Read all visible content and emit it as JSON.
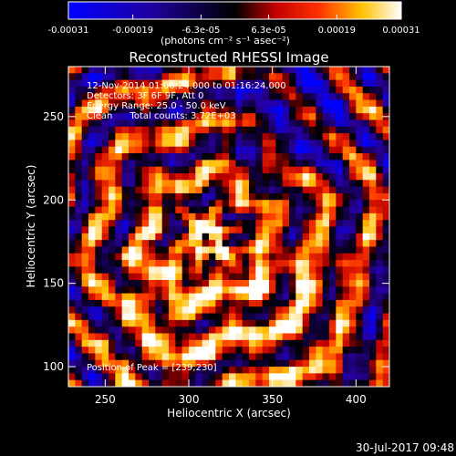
{
  "colorbar": {
    "tick_labels": [
      "-0.00031",
      "-0.00019",
      "-6.3e-05",
      "6.3e-05",
      "0.00019",
      "0.00031"
    ],
    "tick_values": [
      -0.00031,
      -0.00019,
      -6.3e-05,
      6.3e-05,
      0.00019,
      0.00031
    ],
    "range": [
      -0.00031,
      0.00031
    ],
    "unit_label": "(photons cm⁻² s⁻¹ asec⁻²)"
  },
  "chart_data": {
    "type": "heatmap",
    "title": "Reconstructed RHESSI Image",
    "xlabel": "Heliocentric X (arcsec)",
    "ylabel": "Heliocentric Y (arcsec)",
    "xlim": [
      228,
      420
    ],
    "ylim": [
      88,
      280
    ],
    "x_ticks": [
      250,
      300,
      350,
      400
    ],
    "x_tick_labels": [
      "250",
      "300",
      "350",
      "400"
    ],
    "y_ticks": [
      100,
      150,
      200,
      250
    ],
    "y_tick_labels": [
      "100",
      "150",
      "200",
      "250"
    ],
    "colormap": [
      "#0000ff",
      "#000000",
      "#ff0000",
      "#ffff00",
      "#ffffff"
    ],
    "peak": [
      239,
      230
    ],
    "annotations": [
      "12-Nov-2014 01:06:24.000 to 01:16:24.000",
      "Detectors: 3F 6F 9F, Att 0",
      "Energy Range: 25.0 - 50.0 keV",
      "Clean      Total counts: 3.72E+03"
    ],
    "peak_label": "Position of Peak = [239,230]"
  },
  "footer": {
    "timestamp": "30-Jul-2017 09:48"
  }
}
